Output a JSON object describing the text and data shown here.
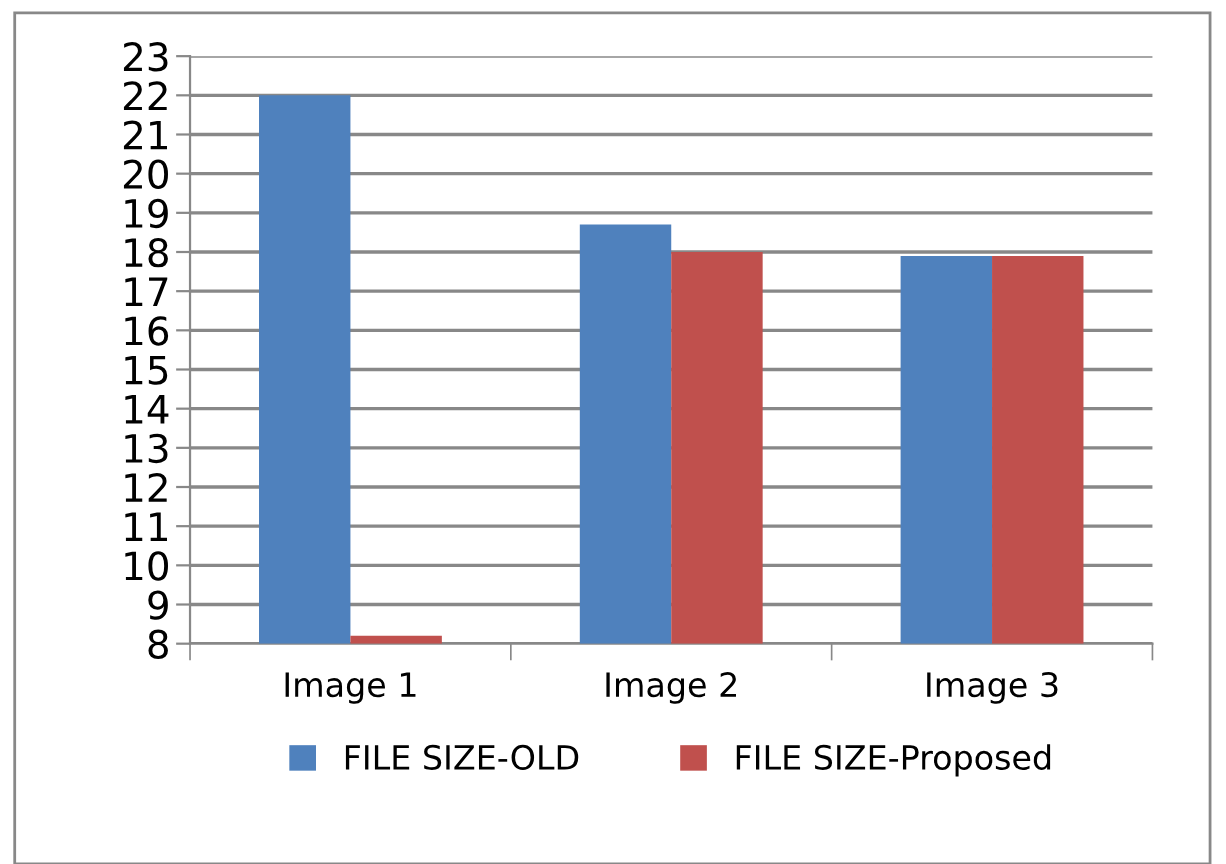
{
  "chart_data": {
    "type": "bar",
    "categories": [
      "Image 1",
      "Image 2",
      "Image 3"
    ],
    "series": [
      {
        "name": "FILE SIZE-OLD",
        "color": "#4f81bd",
        "values": [
          22.0,
          18.7,
          17.9
        ]
      },
      {
        "name": "FILE SIZE-Proposed",
        "color": "#c0504d",
        "values": [
          8.2,
          18.0,
          17.9
        ]
      }
    ],
    "ylim": [
      8,
      23
    ],
    "yticks": [
      8,
      9,
      10,
      11,
      12,
      13,
      14,
      15,
      16,
      17,
      18,
      19,
      20,
      21,
      22,
      23
    ],
    "grid": "y",
    "legend": "bottom"
  }
}
